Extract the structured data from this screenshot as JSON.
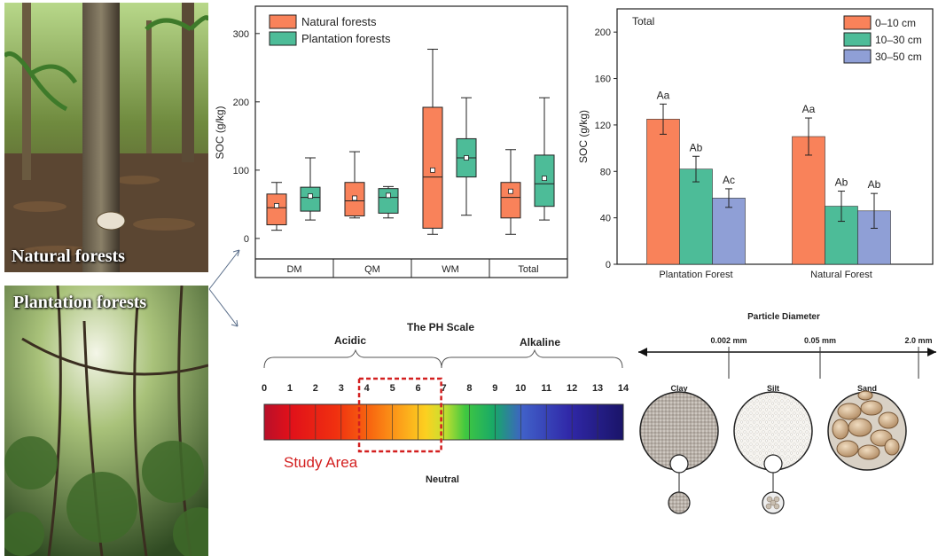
{
  "photos": {
    "natural": {
      "label": "Natural forests",
      "icon": "natural-forest-photo"
    },
    "plantation": {
      "label": "Plantation forests",
      "icon": "plantation-forest-photo"
    }
  },
  "colors": {
    "orange": "#F9825A",
    "teal": "#4DBC98",
    "blue": "#8F9FD6"
  },
  "chart_data": [
    {
      "type": "box",
      "title": "",
      "ylabel": "SOC (g/kg)",
      "ylim": [
        -30,
        340
      ],
      "yticks": [
        0,
        100,
        200,
        300
      ],
      "categories": [
        "DM",
        "QM",
        "WM",
        "Total"
      ],
      "legend": [
        "Natural forests",
        "Plantation forests"
      ],
      "series": [
        {
          "name": "Natural forests",
          "color": "#F9825A",
          "boxes": [
            {
              "min": 12,
              "q1": 20,
              "median": 45,
              "q3": 65,
              "max": 82,
              "mean": 48
            },
            {
              "min": 30,
              "q1": 33,
              "median": 55,
              "q3": 82,
              "max": 127,
              "mean": 59
            },
            {
              "min": 6,
              "q1": 15,
              "median": 90,
              "q3": 192,
              "max": 277,
              "mean": 100
            },
            {
              "min": 6,
              "q1": 30,
              "median": 60,
              "q3": 82,
              "max": 130,
              "mean": 69
            }
          ]
        },
        {
          "name": "Plantation forests",
          "color": "#4DBC98",
          "boxes": [
            {
              "min": 27,
              "q1": 40,
              "median": 60,
              "q3": 75,
              "max": 118,
              "mean": 62
            },
            {
              "min": 30,
              "q1": 37,
              "median": 60,
              "q3": 73,
              "max": 76,
              "mean": 63
            },
            {
              "min": 34,
              "q1": 90,
              "median": 118,
              "q3": 146,
              "max": 206,
              "mean": 118
            },
            {
              "min": 27,
              "q1": 47,
              "median": 80,
              "q3": 122,
              "max": 206,
              "mean": 88
            }
          ]
        }
      ]
    },
    {
      "type": "bar",
      "title": "Total",
      "ylabel": "SOC (g/kg)",
      "ylim": [
        0,
        220
      ],
      "yticks": [
        0,
        40,
        80,
        120,
        160,
        200
      ],
      "categories": [
        "Plantation Forest",
        "Natural Forest"
      ],
      "series": [
        {
          "name": "0–10 cm",
          "color": "#F9825A",
          "values": [
            125,
            110
          ],
          "errors": [
            13,
            16
          ],
          "labels": [
            "Aa",
            "Aa"
          ]
        },
        {
          "name": "10–30 cm",
          "color": "#4DBC98",
          "values": [
            82,
            50
          ],
          "errors": [
            11,
            13
          ],
          "labels": [
            "Ab",
            "Ab"
          ]
        },
        {
          "name": "30–50 cm",
          "color": "#8F9FD6",
          "values": [
            57,
            46
          ],
          "errors": [
            8,
            15
          ],
          "labels": [
            "Ac",
            "Ab"
          ]
        }
      ]
    }
  ],
  "ph_scale": {
    "title": "The PH Scale",
    "acidic": "Acidic",
    "alkaline": "Alkaline",
    "neutral": "Neutral",
    "study_area": "Study Area",
    "study_range": [
      3.7,
      6.9
    ],
    "numbers": [
      "0",
      "1",
      "2",
      "3",
      "4",
      "5",
      "6",
      "7",
      "8",
      "9",
      "10",
      "11",
      "12",
      "13",
      "14"
    ]
  },
  "particles": {
    "title": "Particle Diameter",
    "marks": [
      {
        "label": "0.002 mm",
        "value": 0.002
      },
      {
        "label": "0.05 mm",
        "value": 0.05
      },
      {
        "label": "2.0 mm",
        "value": 2.0
      }
    ],
    "types": [
      "Clay",
      "Silt",
      "Sand"
    ]
  }
}
